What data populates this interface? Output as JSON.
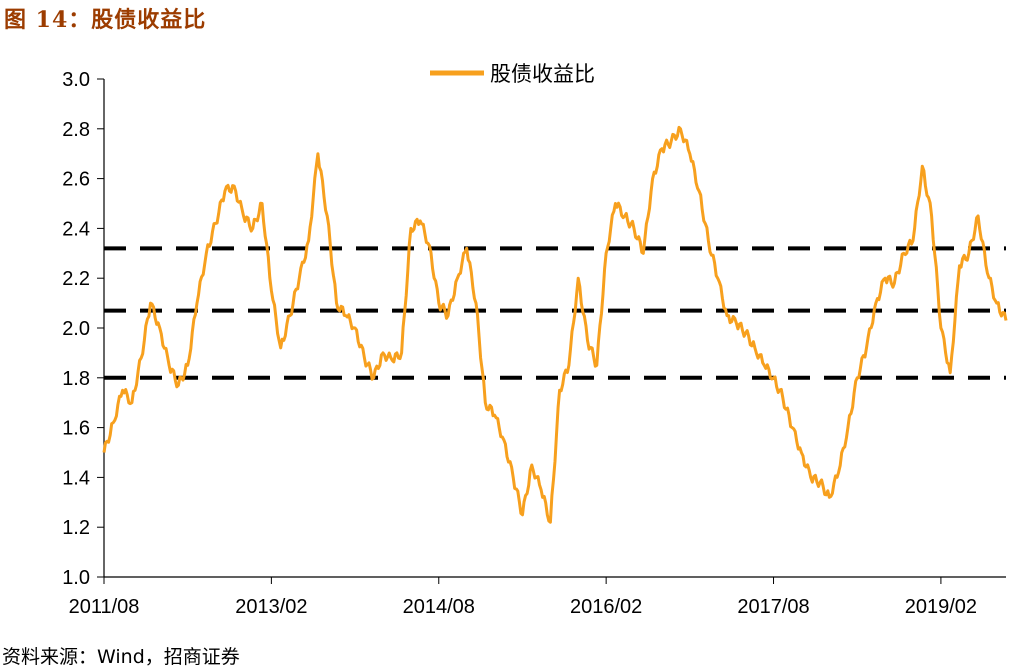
{
  "figure": {
    "title": "图 14：股债收益比",
    "source": "资料来源：Wind，招商证券"
  },
  "chart_data": {
    "type": "line",
    "title": "",
    "xlabel": "",
    "ylabel": "",
    "x_tick_labels": [
      "2011/08",
      "2013/02",
      "2014/08",
      "2016/02",
      "2017/08",
      "2019/02"
    ],
    "x_range": [
      "2011/08",
      "2019/09"
    ],
    "ylim": [
      1.0,
      3.0
    ],
    "y_ticks": [
      1.0,
      1.2,
      1.4,
      1.6,
      1.8,
      2.0,
      2.2,
      2.4,
      2.6,
      2.8,
      3.0
    ],
    "grid": false,
    "legend": {
      "position": "top-center",
      "entries": [
        "股债收益比"
      ]
    },
    "reference_lines": [
      {
        "value": 2.32,
        "style": "dashed",
        "color": "#000000"
      },
      {
        "value": 2.07,
        "style": "dashed",
        "color": "#000000"
      },
      {
        "value": 1.8,
        "style": "dashed",
        "color": "#000000"
      }
    ],
    "series": [
      {
        "name": "股债收益比",
        "color": "#f7a01e",
        "x": [
          "2011/08",
          "2011/09",
          "2011/10",
          "2011/11",
          "2011/12",
          "2012/01",
          "2012/02",
          "2012/03",
          "2012/04",
          "2012/05",
          "2012/06",
          "2012/07",
          "2012/08",
          "2012/09",
          "2012/10",
          "2012/11",
          "2012/12",
          "2013/01",
          "2013/02",
          "2013/03",
          "2013/04",
          "2013/05",
          "2013/06",
          "2013/07",
          "2013/08",
          "2013/09",
          "2013/10",
          "2013/11",
          "2013/12",
          "2014/01",
          "2014/02",
          "2014/03",
          "2014/04",
          "2014/05",
          "2014/06",
          "2014/07",
          "2014/08",
          "2014/09",
          "2014/10",
          "2014/11",
          "2014/12",
          "2015/01",
          "2015/02",
          "2015/03",
          "2015/04",
          "2015/05",
          "2015/06",
          "2015/07",
          "2015/08",
          "2015/09",
          "2015/10",
          "2015/11",
          "2015/12",
          "2016/01",
          "2016/02",
          "2016/03",
          "2016/04",
          "2016/05",
          "2016/06",
          "2016/07",
          "2016/08",
          "2016/09",
          "2016/10",
          "2016/11",
          "2016/12",
          "2017/01",
          "2017/02",
          "2017/03",
          "2017/04",
          "2017/05",
          "2017/06",
          "2017/07",
          "2017/08",
          "2017/09",
          "2017/10",
          "2017/11",
          "2017/12",
          "2018/01",
          "2018/02",
          "2018/03",
          "2018/04",
          "2018/05",
          "2018/06",
          "2018/07",
          "2018/08",
          "2018/09",
          "2018/10",
          "2018/11",
          "2018/12",
          "2019/01",
          "2019/02",
          "2019/03",
          "2019/04",
          "2019/05",
          "2019/06",
          "2019/07",
          "2019/08",
          "2019/09"
        ],
        "values": [
          1.5,
          1.62,
          1.75,
          1.7,
          1.88,
          2.1,
          2.0,
          1.85,
          1.77,
          1.85,
          2.1,
          2.3,
          2.42,
          2.55,
          2.57,
          2.45,
          2.4,
          2.5,
          2.15,
          1.92,
          2.05,
          2.2,
          2.35,
          2.7,
          2.45,
          2.1,
          2.05,
          2.0,
          1.88,
          1.8,
          1.9,
          1.87,
          1.9,
          2.4,
          2.43,
          2.33,
          2.1,
          2.05,
          2.2,
          2.32,
          2.1,
          1.7,
          1.65,
          1.55,
          1.4,
          1.25,
          1.45,
          1.35,
          1.22,
          1.75,
          1.85,
          2.2,
          1.95,
          1.85,
          2.3,
          2.5,
          2.45,
          2.4,
          2.3,
          2.6,
          2.72,
          2.75,
          2.8,
          2.7,
          2.55,
          2.35,
          2.2,
          2.05,
          2.02,
          1.98,
          1.92,
          1.85,
          1.8,
          1.72,
          1.6,
          1.5,
          1.4,
          1.38,
          1.32,
          1.42,
          1.6,
          1.8,
          1.92,
          2.1,
          2.2,
          2.18,
          2.3,
          2.35,
          2.65,
          2.45,
          2.0,
          1.82,
          2.25,
          2.3,
          2.45,
          2.22,
          2.1,
          2.03
        ]
      }
    ]
  }
}
